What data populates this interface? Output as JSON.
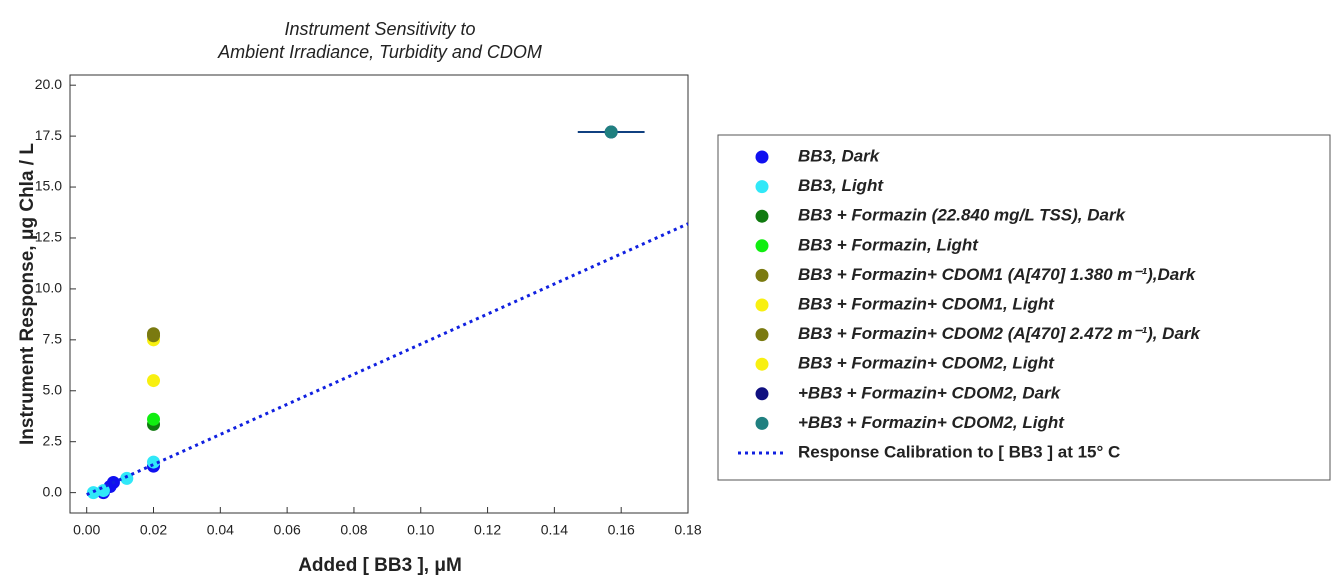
{
  "chart_data": {
    "type": "scatter",
    "title": [
      "Instrument Sensitivity to",
      "Ambient Irradiance, Turbidity and CDOM"
    ],
    "x_label": "Added [ BB3 ], μM",
    "y_label": "Instrument Response, μg Chla / L",
    "xlim": [
      -0.005,
      0.18
    ],
    "ylim": [
      -1,
      20.5
    ],
    "xticks": [
      {
        "value": 0,
        "label": "0.00"
      },
      {
        "value": 0.02,
        "label": "0.02"
      },
      {
        "value": 0.04,
        "label": "0.04"
      },
      {
        "value": 0.06,
        "label": "0.06"
      },
      {
        "value": 0.08,
        "label": "0.08"
      },
      {
        "value": 0.1,
        "label": "0.10"
      },
      {
        "value": 0.12,
        "label": "0.12"
      },
      {
        "value": 0.14,
        "label": "0.14"
      },
      {
        "value": 0.16,
        "label": "0.16"
      },
      {
        "value": 0.18,
        "label": "0.18"
      }
    ],
    "yticks": [
      {
        "value": 0,
        "label": "0.0"
      },
      2.5,
      {
        "value": 5,
        "label": "5.0"
      },
      7.5,
      {
        "value": 10,
        "label": "10.0"
      },
      12.5,
      {
        "value": 15,
        "label": "15.0"
      },
      17.5,
      {
        "value": 20,
        "label": "20.0"
      }
    ],
    "grid": false,
    "legend": "right",
    "series": [
      {
        "name": "BB3, Dark",
        "color": "#1010f0",
        "x": [
          0.005,
          0.007,
          0.008,
          0.02
        ],
        "values": [
          0,
          0.3,
          0.5,
          1.3
        ]
      },
      {
        "name": "BB3, Light",
        "color": "#30e8f8",
        "x": [
          0.002,
          0.005,
          0.012,
          0.02
        ],
        "values": [
          0,
          0.1,
          0.7,
          1.5
        ]
      },
      {
        "name": "BB3 + Formazin (22.840 mg/L TSS), Dark",
        "color": "#107a10",
        "x": [
          0.02
        ],
        "values": [
          3.35
        ]
      },
      {
        "name": "BB3 + Formazin, Light",
        "color": "#10ee10",
        "x": [
          0.02
        ],
        "values": [
          3.6
        ]
      },
      {
        "name": "BB3 + Formazin+ CDOM1 (A[470] 1.380 m⁻¹),Dark",
        "color": "#7a7a10",
        "x": [
          0.02
        ],
        "values": [
          7.8
        ]
      },
      {
        "name": "BB3 + Formazin+ CDOM1, Light",
        "color": "#f8f010",
        "x": [
          0.02
        ],
        "values": [
          7.5
        ]
      },
      {
        "name": "BB3 + Formazin+ CDOM2 (A[470] 2.472 m⁻¹), Dark",
        "color": "#7a7a10",
        "x": [
          0.02
        ],
        "values": [
          7.7
        ]
      },
      {
        "name": "BB3 + Formazin+ CDOM2, Light",
        "color": "#f8f010",
        "x": [
          0.02
        ],
        "values": [
          5.5
        ]
      },
      {
        "name": "+BB3 + Formazin+ CDOM2, Dark",
        "color": "#101080",
        "x": [
          0.157
        ],
        "values": [
          17.7
        ]
      },
      {
        "name": "+BB3 + Formazin+ CDOM2, Light",
        "color": "#208080",
        "x": [
          0.157
        ],
        "values": [
          17.7
        ],
        "xerr": [
          0.01
        ]
      },
      {
        "name": "Response Calibration to [ BB3 ] at 15° C",
        "color": "#1020e0",
        "line": "dotted",
        "x": [
          0,
          0.18
        ],
        "values": [
          -0.1,
          13.2
        ]
      }
    ]
  }
}
